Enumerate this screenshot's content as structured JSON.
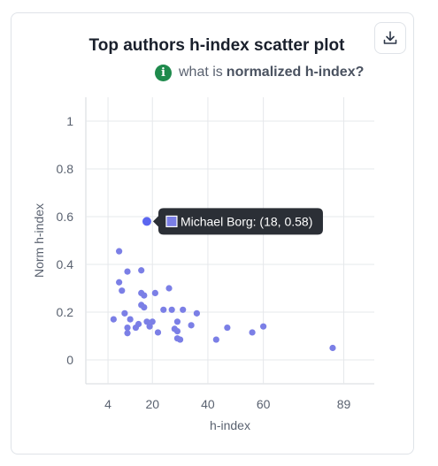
{
  "header": {
    "title": "Top authors h-index scatter plot",
    "download_icon": "download-icon"
  },
  "info": {
    "icon": "info-icon",
    "prefix": "what is ",
    "link": "normalized h-index?"
  },
  "tooltip": {
    "label": "Michael Borg: (18, 0.58)",
    "color": "#7b7fe6"
  },
  "chart_data": {
    "type": "scatter",
    "xlabel": "h-index",
    "ylabel": "Norm h-index",
    "x_ticks": [
      4,
      20,
      40,
      60,
      89
    ],
    "y_ticks": [
      0,
      0.2,
      0.4,
      0.6,
      0.8,
      1
    ],
    "xlim": [
      -4,
      100
    ],
    "ylim": [
      -0.1,
      1.1
    ],
    "grid": true,
    "point_color": "#7b7fe6",
    "highlight_color": "#5b66f0",
    "highlight": {
      "name": "Michael Borg",
      "x": 18,
      "y": 0.58
    },
    "points": [
      {
        "x": 8,
        "y": 0.455
      },
      {
        "x": 8,
        "y": 0.325
      },
      {
        "x": 9,
        "y": 0.29
      },
      {
        "x": 11,
        "y": 0.37
      },
      {
        "x": 16,
        "y": 0.375
      },
      {
        "x": 16,
        "y": 0.28
      },
      {
        "x": 17,
        "y": 0.27
      },
      {
        "x": 21,
        "y": 0.28
      },
      {
        "x": 26,
        "y": 0.3
      },
      {
        "x": 6,
        "y": 0.17
      },
      {
        "x": 10,
        "y": 0.195
      },
      {
        "x": 12,
        "y": 0.17
      },
      {
        "x": 16,
        "y": 0.23
      },
      {
        "x": 17,
        "y": 0.22
      },
      {
        "x": 24,
        "y": 0.21
      },
      {
        "x": 27,
        "y": 0.21
      },
      {
        "x": 31,
        "y": 0.21
      },
      {
        "x": 36,
        "y": 0.195
      },
      {
        "x": 11,
        "y": 0.135
      },
      {
        "x": 11,
        "y": 0.112
      },
      {
        "x": 14,
        "y": 0.135
      },
      {
        "x": 15,
        "y": 0.15
      },
      {
        "x": 18,
        "y": 0.16
      },
      {
        "x": 19,
        "y": 0.14
      },
      {
        "x": 20,
        "y": 0.16
      },
      {
        "x": 22,
        "y": 0.115
      },
      {
        "x": 28,
        "y": 0.13
      },
      {
        "x": 29,
        "y": 0.16
      },
      {
        "x": 29,
        "y": 0.12
      },
      {
        "x": 29,
        "y": 0.09
      },
      {
        "x": 30,
        "y": 0.085
      },
      {
        "x": 34,
        "y": 0.145
      },
      {
        "x": 43,
        "y": 0.085
      },
      {
        "x": 47,
        "y": 0.135
      },
      {
        "x": 56,
        "y": 0.115
      },
      {
        "x": 60,
        "y": 0.14
      },
      {
        "x": 85,
        "y": 0.05
      }
    ]
  }
}
